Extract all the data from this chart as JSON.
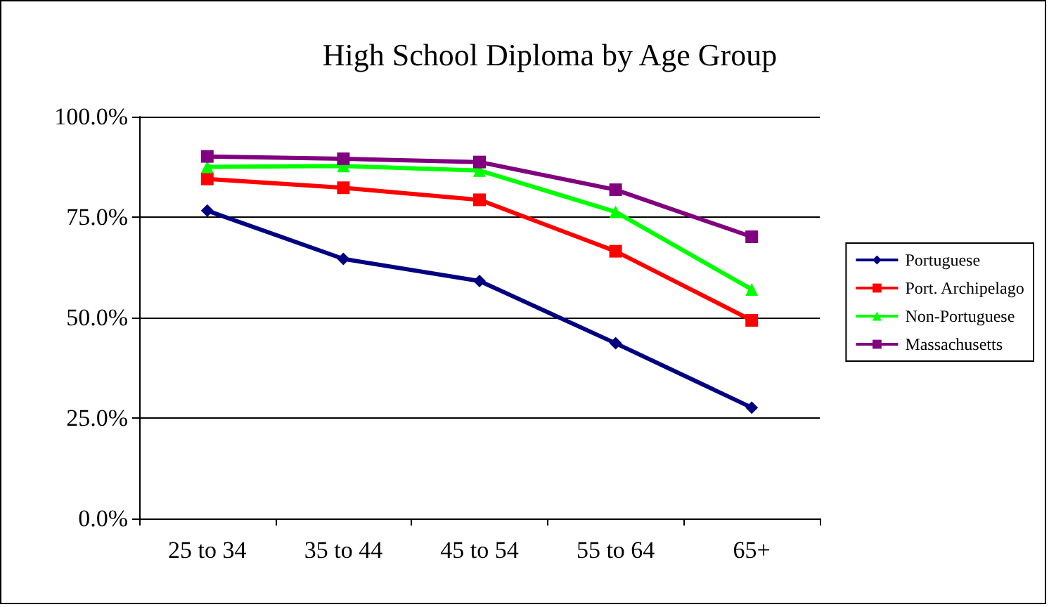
{
  "chart_data": {
    "type": "line",
    "title": "High School Diploma by Age Group",
    "categories": [
      "25 to 34",
      "35 to 44",
      "45 to 54",
      "55 to 64",
      "65+"
    ],
    "series": [
      {
        "name": "Portuguese",
        "color": "#000080",
        "marker": "diamond",
        "values": [
          76.6,
          64.6,
          59.1,
          43.6,
          27.6
        ]
      },
      {
        "name": "Port. Archipelago",
        "color": "#ff0000",
        "marker": "square",
        "values": [
          84.5,
          82.3,
          79.3,
          66.5,
          49.3
        ]
      },
      {
        "name": "Non-Portuguese",
        "color": "#00ff00",
        "marker": "triangle",
        "values": [
          87.5,
          87.7,
          86.6,
          76.3,
          57.0
        ]
      },
      {
        "name": "Massachusetts",
        "color": "#800080",
        "marker": "square",
        "values": [
          90.1,
          89.5,
          88.7,
          81.8,
          70.1
        ]
      }
    ],
    "ylim": [
      0,
      100
    ],
    "yticks": [
      {
        "value": 0,
        "label": "0.0%"
      },
      {
        "value": 25,
        "label": "25.0%"
      },
      {
        "value": 50,
        "label": "50.0%"
      },
      {
        "value": 75,
        "label": "75.0%"
      },
      {
        "value": 100,
        "label": "100.0%"
      }
    ],
    "grid": "y",
    "legend": "right"
  }
}
